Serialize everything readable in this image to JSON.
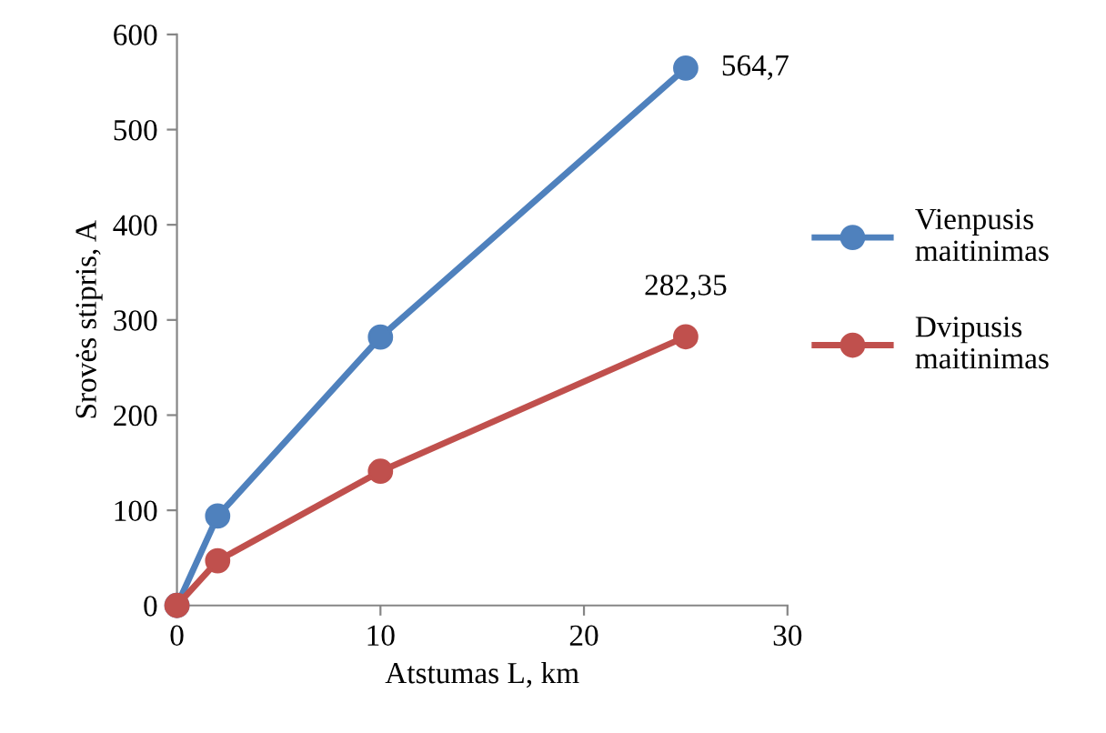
{
  "chart_data": {
    "type": "line",
    "xlabel": "Atstumas L, km",
    "ylabel": "Srovės stipris, A",
    "x": [
      0,
      2,
      10,
      25
    ],
    "series": [
      {
        "name": "Vienpusis\nmaitinimas",
        "color": "#4f81bd",
        "values": [
          0,
          94,
          282,
          564.7
        ],
        "value_labels": [
          null,
          null,
          null,
          "564,7"
        ]
      },
      {
        "name": "Dvipusis\nmaitinimas",
        "color": "#c0504d",
        "values": [
          0,
          47,
          141,
          282.35
        ],
        "value_labels": [
          null,
          null,
          null,
          "282,35"
        ]
      }
    ],
    "xlim": [
      0,
      30
    ],
    "xticks": [
      0,
      10,
      20,
      30
    ],
    "ylim": [
      0,
      600
    ],
    "yticks": [
      0,
      100,
      200,
      300,
      400,
      500,
      600
    ],
    "grid": false,
    "legend": "right",
    "marker": "circle",
    "line_style": "solid"
  }
}
